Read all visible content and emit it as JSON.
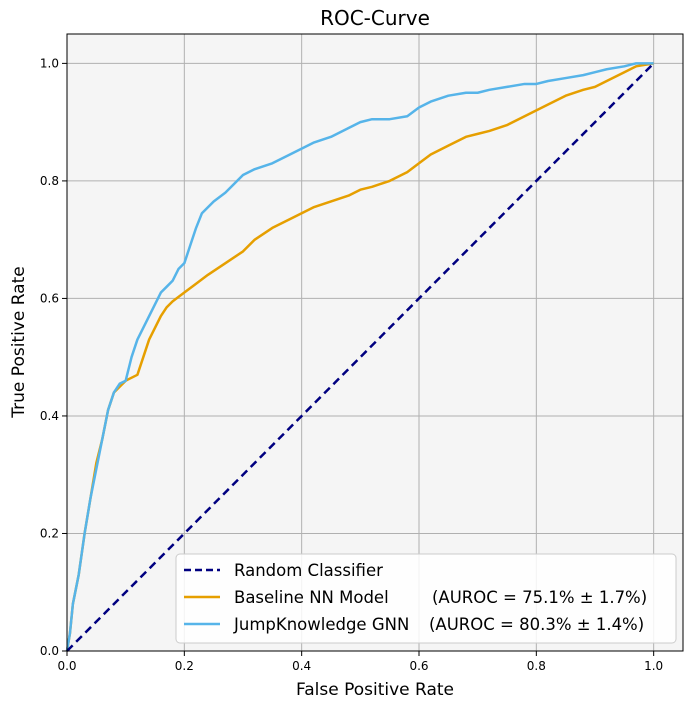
{
  "chart_data": {
    "type": "line",
    "title": "ROC-Curve",
    "xlabel": "False Positive Rate",
    "ylabel": "True Positive Rate",
    "xlim": [
      0,
      1.05
    ],
    "ylim": [
      0,
      1.05
    ],
    "xticks": [
      "0.0",
      "0.2",
      "0.4",
      "0.6",
      "0.8",
      "1.0"
    ],
    "yticks": [
      "0.0",
      "0.2",
      "0.4",
      "0.6",
      "0.8",
      "1.0"
    ],
    "grid": true,
    "legend_position": "lower-right",
    "background_color": "#f5f5f5",
    "series": [
      {
        "name": "Random Classifier",
        "color": "#000080",
        "style": "dashed",
        "x": [
          0,
          1
        ],
        "y": [
          0,
          1
        ]
      },
      {
        "name": "Baseline NN Model",
        "auroc_label": "(AUROC = 75.1% ± 1.7%)",
        "color": "#e69f00",
        "style": "solid",
        "x": [
          0,
          0.005,
          0.01,
          0.02,
          0.03,
          0.04,
          0.05,
          0.06,
          0.07,
          0.08,
          0.09,
          0.1,
          0.12,
          0.13,
          0.14,
          0.15,
          0.16,
          0.17,
          0.18,
          0.2,
          0.22,
          0.24,
          0.27,
          0.3,
          0.32,
          0.35,
          0.38,
          0.4,
          0.42,
          0.45,
          0.48,
          0.5,
          0.52,
          0.55,
          0.58,
          0.6,
          0.62,
          0.65,
          0.68,
          0.7,
          0.72,
          0.75,
          0.78,
          0.8,
          0.82,
          0.85,
          0.88,
          0.9,
          0.92,
          0.95,
          0.97,
          1.0
        ],
        "y": [
          0,
          0.03,
          0.08,
          0.13,
          0.2,
          0.26,
          0.32,
          0.36,
          0.41,
          0.44,
          0.45,
          0.46,
          0.47,
          0.5,
          0.53,
          0.55,
          0.57,
          0.585,
          0.595,
          0.61,
          0.625,
          0.64,
          0.66,
          0.68,
          0.7,
          0.72,
          0.735,
          0.745,
          0.755,
          0.765,
          0.775,
          0.785,
          0.79,
          0.8,
          0.815,
          0.83,
          0.845,
          0.86,
          0.875,
          0.88,
          0.885,
          0.895,
          0.91,
          0.92,
          0.93,
          0.945,
          0.955,
          0.96,
          0.97,
          0.985,
          0.995,
          1.0
        ]
      },
      {
        "name": "JumpKnowledge GNN",
        "auroc_label": "(AUROC = 80.3% ± 1.4%)",
        "color": "#56b4e9",
        "style": "solid",
        "x": [
          0,
          0.005,
          0.01,
          0.02,
          0.03,
          0.04,
          0.05,
          0.06,
          0.07,
          0.08,
          0.09,
          0.1,
          0.11,
          0.12,
          0.13,
          0.14,
          0.15,
          0.16,
          0.17,
          0.18,
          0.19,
          0.2,
          0.21,
          0.22,
          0.23,
          0.25,
          0.27,
          0.3,
          0.32,
          0.35,
          0.38,
          0.4,
          0.42,
          0.45,
          0.48,
          0.5,
          0.52,
          0.55,
          0.58,
          0.6,
          0.62,
          0.65,
          0.68,
          0.7,
          0.72,
          0.75,
          0.78,
          0.8,
          0.82,
          0.85,
          0.88,
          0.9,
          0.92,
          0.95,
          0.97,
          1.0
        ],
        "y": [
          0,
          0.03,
          0.08,
          0.13,
          0.2,
          0.26,
          0.31,
          0.36,
          0.41,
          0.44,
          0.455,
          0.46,
          0.5,
          0.53,
          0.55,
          0.57,
          0.59,
          0.61,
          0.62,
          0.63,
          0.65,
          0.66,
          0.69,
          0.72,
          0.745,
          0.765,
          0.78,
          0.81,
          0.82,
          0.83,
          0.845,
          0.855,
          0.865,
          0.875,
          0.89,
          0.9,
          0.905,
          0.905,
          0.91,
          0.925,
          0.935,
          0.945,
          0.95,
          0.95,
          0.955,
          0.96,
          0.965,
          0.965,
          0.97,
          0.975,
          0.98,
          0.985,
          0.99,
          0.995,
          1.0,
          1.0
        ]
      }
    ]
  }
}
